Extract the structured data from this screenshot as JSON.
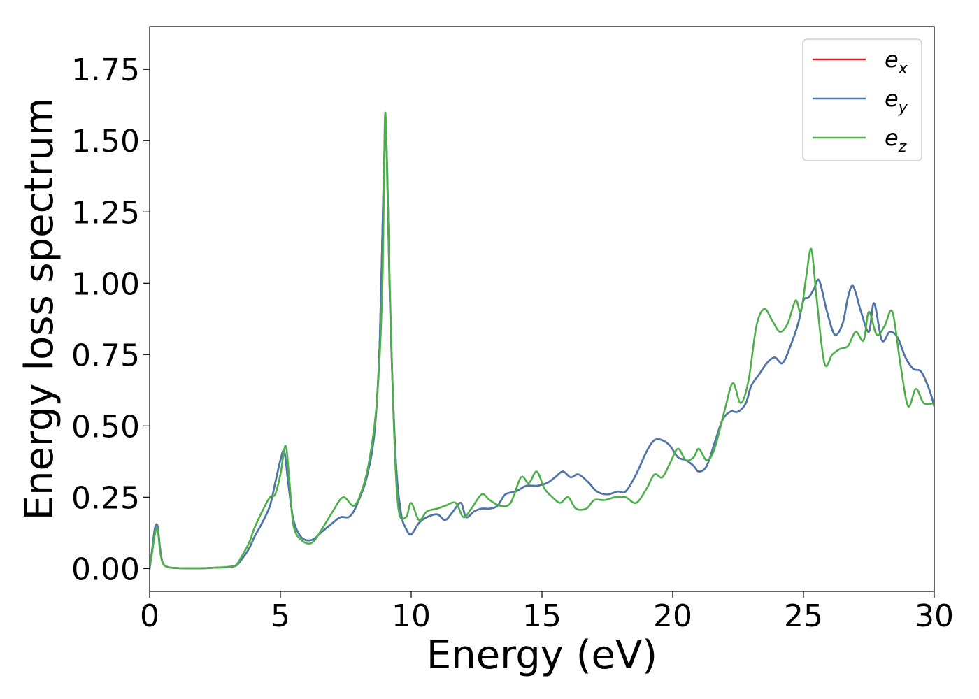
{
  "chart_data": {
    "type": "line",
    "title": "",
    "xlabel": "Energy (eV)",
    "ylabel": "Energy loss spectrum",
    "xlim": [
      0,
      30
    ],
    "ylim": [
      -0.08,
      1.9
    ],
    "xticks": [
      0,
      5,
      10,
      15,
      20,
      25,
      30
    ],
    "xtick_labels": [
      "0",
      "5",
      "10",
      "15",
      "20",
      "25",
      "30"
    ],
    "yticks": [
      0.0,
      0.25,
      0.5,
      0.75,
      1.0,
      1.25,
      1.5,
      1.75
    ],
    "ytick_labels": [
      "0.00",
      "0.25",
      "0.50",
      "0.75",
      "1.00",
      "1.25",
      "1.50",
      "1.75"
    ],
    "grid": false,
    "legend_position": "top-right",
    "series": [
      {
        "name": "e_x",
        "legend_base": "e",
        "legend_sub": "x",
        "color": "#e41a1c",
        "x": [
          0,
          0.1,
          0.2,
          0.3,
          0.4,
          0.5,
          0.7,
          1.0,
          1.5,
          2.0,
          2.5,
          3.0,
          3.3,
          3.5,
          3.8,
          4.0,
          4.3,
          4.6,
          4.8,
          5.0,
          5.15,
          5.3,
          5.5,
          5.8,
          6.2,
          6.6,
          7.0,
          7.3,
          7.6,
          7.8,
          8.0,
          8.3,
          8.6,
          8.8,
          8.95,
          9.05,
          9.2,
          9.4,
          9.6,
          9.8,
          10.0,
          10.3,
          10.6,
          11.0,
          11.3,
          11.6,
          11.9,
          12.1,
          12.4,
          12.7,
          13.0,
          13.3,
          13.6,
          14.0,
          14.4,
          14.8,
          15.2,
          15.5,
          15.8,
          16.1,
          16.4,
          16.8,
          17.1,
          17.5,
          17.9,
          18.2,
          18.6,
          19.0,
          19.3,
          19.6,
          19.9,
          20.2,
          20.5,
          20.8,
          21.0,
          21.3,
          21.6,
          21.9,
          22.2,
          22.5,
          22.8,
          23.0,
          23.3,
          23.6,
          23.9,
          24.2,
          24.5,
          24.8,
          25.0,
          25.2,
          25.4,
          25.6,
          25.9,
          26.2,
          26.5,
          26.7,
          26.9,
          27.2,
          27.5,
          27.7,
          28.0,
          28.3,
          28.6,
          28.9,
          29.2,
          29.5,
          29.8,
          30.0
        ],
        "y": [
          0.0,
          0.07,
          0.14,
          0.15,
          0.07,
          0.02,
          0.005,
          0.002,
          0.001,
          0.001,
          0.003,
          0.005,
          0.01,
          0.03,
          0.07,
          0.11,
          0.16,
          0.22,
          0.3,
          0.38,
          0.41,
          0.3,
          0.17,
          0.11,
          0.1,
          0.13,
          0.16,
          0.18,
          0.18,
          0.2,
          0.24,
          0.32,
          0.48,
          0.8,
          1.38,
          1.5,
          0.9,
          0.4,
          0.2,
          0.14,
          0.12,
          0.16,
          0.18,
          0.19,
          0.17,
          0.2,
          0.23,
          0.18,
          0.2,
          0.21,
          0.21,
          0.22,
          0.26,
          0.27,
          0.29,
          0.29,
          0.3,
          0.32,
          0.34,
          0.32,
          0.33,
          0.3,
          0.27,
          0.26,
          0.27,
          0.27,
          0.33,
          0.41,
          0.45,
          0.45,
          0.43,
          0.39,
          0.38,
          0.36,
          0.34,
          0.36,
          0.44,
          0.52,
          0.55,
          0.55,
          0.58,
          0.64,
          0.68,
          0.72,
          0.74,
          0.72,
          0.78,
          0.86,
          0.94,
          0.95,
          0.98,
          1.01,
          0.9,
          0.82,
          0.86,
          0.95,
          0.99,
          0.9,
          0.83,
          0.93,
          0.8,
          0.83,
          0.81,
          0.74,
          0.7,
          0.69,
          0.63,
          0.57
        ]
      },
      {
        "name": "e_y",
        "legend_base": "e",
        "legend_sub": "y",
        "color": "#4878b0",
        "x": [
          0,
          0.1,
          0.2,
          0.3,
          0.4,
          0.5,
          0.7,
          1.0,
          1.5,
          2.0,
          2.5,
          3.0,
          3.3,
          3.5,
          3.8,
          4.0,
          4.3,
          4.6,
          4.8,
          5.0,
          5.15,
          5.3,
          5.5,
          5.8,
          6.2,
          6.6,
          7.0,
          7.3,
          7.6,
          7.8,
          8.0,
          8.3,
          8.6,
          8.8,
          8.95,
          9.05,
          9.2,
          9.4,
          9.6,
          9.8,
          10.0,
          10.3,
          10.6,
          11.0,
          11.3,
          11.6,
          11.9,
          12.1,
          12.4,
          12.7,
          13.0,
          13.3,
          13.6,
          14.0,
          14.4,
          14.8,
          15.2,
          15.5,
          15.8,
          16.1,
          16.4,
          16.8,
          17.1,
          17.5,
          17.9,
          18.2,
          18.6,
          19.0,
          19.3,
          19.6,
          19.9,
          20.2,
          20.5,
          20.8,
          21.0,
          21.3,
          21.6,
          21.9,
          22.2,
          22.5,
          22.8,
          23.0,
          23.3,
          23.6,
          23.9,
          24.2,
          24.5,
          24.8,
          25.0,
          25.2,
          25.4,
          25.6,
          25.9,
          26.2,
          26.5,
          26.7,
          26.9,
          27.2,
          27.5,
          27.7,
          28.0,
          28.3,
          28.6,
          28.9,
          29.2,
          29.5,
          29.8,
          30.0
        ],
        "y": [
          0.0,
          0.07,
          0.14,
          0.15,
          0.07,
          0.02,
          0.005,
          0.002,
          0.001,
          0.001,
          0.003,
          0.005,
          0.01,
          0.03,
          0.07,
          0.11,
          0.16,
          0.22,
          0.3,
          0.38,
          0.41,
          0.3,
          0.17,
          0.11,
          0.1,
          0.13,
          0.16,
          0.18,
          0.18,
          0.2,
          0.24,
          0.32,
          0.48,
          0.8,
          1.38,
          1.5,
          0.9,
          0.4,
          0.2,
          0.14,
          0.12,
          0.16,
          0.18,
          0.19,
          0.17,
          0.2,
          0.23,
          0.18,
          0.2,
          0.21,
          0.21,
          0.22,
          0.26,
          0.27,
          0.29,
          0.29,
          0.3,
          0.32,
          0.34,
          0.32,
          0.33,
          0.3,
          0.27,
          0.26,
          0.27,
          0.27,
          0.33,
          0.41,
          0.45,
          0.45,
          0.43,
          0.39,
          0.38,
          0.36,
          0.34,
          0.36,
          0.44,
          0.52,
          0.55,
          0.55,
          0.58,
          0.64,
          0.68,
          0.72,
          0.74,
          0.72,
          0.78,
          0.86,
          0.94,
          0.95,
          0.98,
          1.01,
          0.9,
          0.82,
          0.86,
          0.95,
          0.99,
          0.9,
          0.83,
          0.93,
          0.8,
          0.83,
          0.81,
          0.74,
          0.7,
          0.69,
          0.63,
          0.57
        ]
      },
      {
        "name": "e_z",
        "legend_base": "e",
        "legend_sub": "z",
        "color": "#4daf4a",
        "x": [
          0,
          0.1,
          0.2,
          0.3,
          0.4,
          0.5,
          0.7,
          1.0,
          1.5,
          2.0,
          2.5,
          3.0,
          3.3,
          3.5,
          3.8,
          4.0,
          4.3,
          4.6,
          4.8,
          5.0,
          5.2,
          5.35,
          5.5,
          5.8,
          6.2,
          6.6,
          7.0,
          7.4,
          7.8,
          8.1,
          8.4,
          8.7,
          8.9,
          9.0,
          9.1,
          9.3,
          9.5,
          9.8,
          10.0,
          10.3,
          10.6,
          11.0,
          11.3,
          11.7,
          12.0,
          12.3,
          12.7,
          13.0,
          13.4,
          13.8,
          14.2,
          14.5,
          14.8,
          15.1,
          15.4,
          15.7,
          16.0,
          16.3,
          16.7,
          17.0,
          17.4,
          17.8,
          18.2,
          18.6,
          19.0,
          19.3,
          19.6,
          19.9,
          20.2,
          20.5,
          20.8,
          21.0,
          21.3,
          21.6,
          22.0,
          22.3,
          22.6,
          22.9,
          23.2,
          23.5,
          23.8,
          24.1,
          24.4,
          24.7,
          24.9,
          25.1,
          25.3,
          25.5,
          25.8,
          26.1,
          26.4,
          26.7,
          27.0,
          27.3,
          27.5,
          27.8,
          28.1,
          28.4,
          28.7,
          29.0,
          29.3,
          29.6,
          30.0
        ],
        "y": [
          0.0,
          0.06,
          0.12,
          0.14,
          0.06,
          0.02,
          0.005,
          0.002,
          0.001,
          0.001,
          0.003,
          0.006,
          0.012,
          0.04,
          0.09,
          0.14,
          0.2,
          0.25,
          0.26,
          0.33,
          0.43,
          0.3,
          0.15,
          0.1,
          0.09,
          0.14,
          0.2,
          0.25,
          0.22,
          0.27,
          0.38,
          0.6,
          1.0,
          1.59,
          1.3,
          0.6,
          0.22,
          0.18,
          0.23,
          0.17,
          0.2,
          0.21,
          0.22,
          0.23,
          0.18,
          0.21,
          0.26,
          0.24,
          0.22,
          0.23,
          0.32,
          0.3,
          0.34,
          0.28,
          0.25,
          0.23,
          0.25,
          0.21,
          0.21,
          0.24,
          0.24,
          0.25,
          0.25,
          0.23,
          0.28,
          0.33,
          0.32,
          0.37,
          0.42,
          0.38,
          0.39,
          0.42,
          0.38,
          0.42,
          0.56,
          0.65,
          0.58,
          0.66,
          0.85,
          0.91,
          0.87,
          0.83,
          0.86,
          0.94,
          0.9,
          1.02,
          1.12,
          0.95,
          0.72,
          0.75,
          0.77,
          0.78,
          0.83,
          0.8,
          0.9,
          0.82,
          0.85,
          0.9,
          0.72,
          0.57,
          0.63,
          0.58,
          0.58
        ]
      }
    ]
  }
}
